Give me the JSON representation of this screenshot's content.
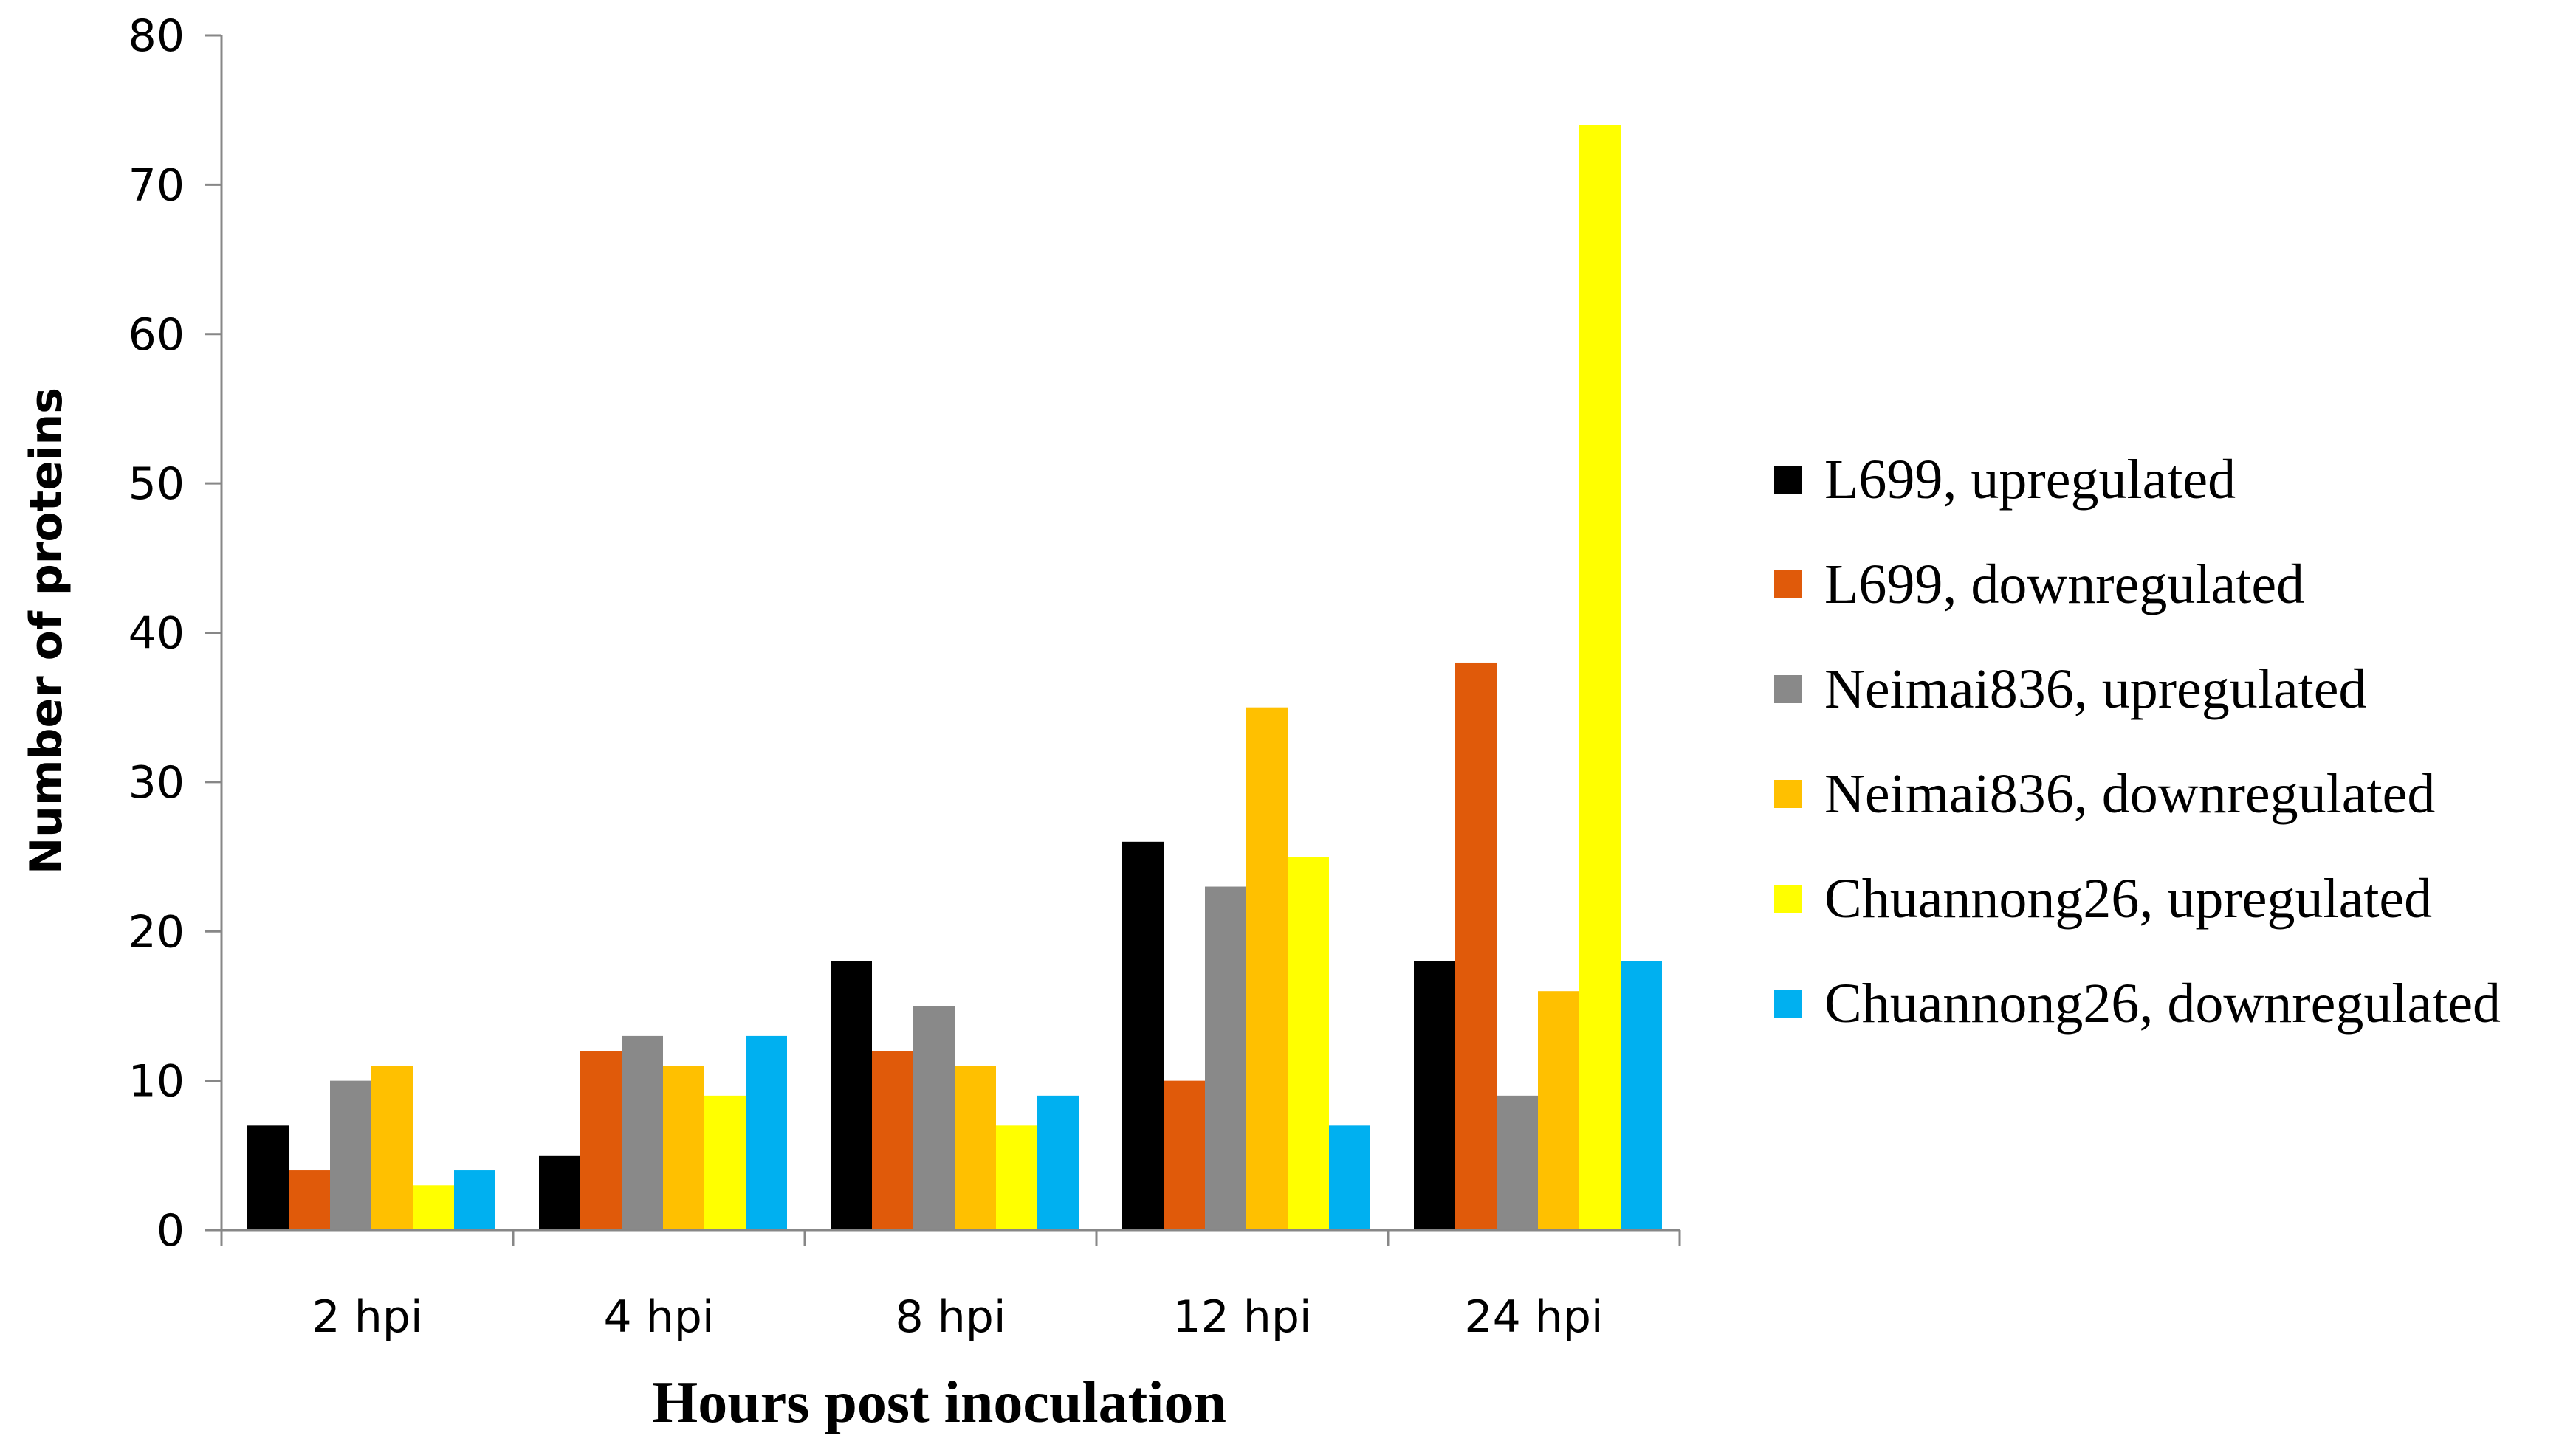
{
  "chart_data": {
    "type": "bar",
    "title": "",
    "xlabel": "Hours post inoculation",
    "ylabel": "Number of proteins",
    "ylim": [
      0,
      80
    ],
    "yticks": [
      0,
      10,
      20,
      30,
      40,
      50,
      60,
      70,
      80
    ],
    "grid": false,
    "legend_position": "right",
    "categories": [
      "2 hpi",
      "4 hpi",
      "8 hpi",
      "12 hpi",
      "24 hpi"
    ],
    "series": [
      {
        "name": "L699, upregulated",
        "color": "#000000",
        "values": [
          7,
          5,
          18,
          26,
          18
        ]
      },
      {
        "name": "L699, downregulated",
        "color": "#E05A0A",
        "values": [
          4,
          12,
          12,
          10,
          38
        ]
      },
      {
        "name": "Neimai836, upregulated",
        "color": "#898989",
        "values": [
          10,
          13,
          15,
          23,
          9
        ]
      },
      {
        "name": "Neimai836, downregulated",
        "color": "#FFC000",
        "values": [
          11,
          11,
          11,
          35,
          16
        ]
      },
      {
        "name": "Chuannong26, upregulated",
        "color": "#FFFF00",
        "values": [
          3,
          9,
          7,
          25,
          74
        ]
      },
      {
        "name": "Chuannong26, downregulated",
        "color": "#00B0F0",
        "values": [
          4,
          13,
          9,
          7,
          18
        ]
      }
    ]
  }
}
